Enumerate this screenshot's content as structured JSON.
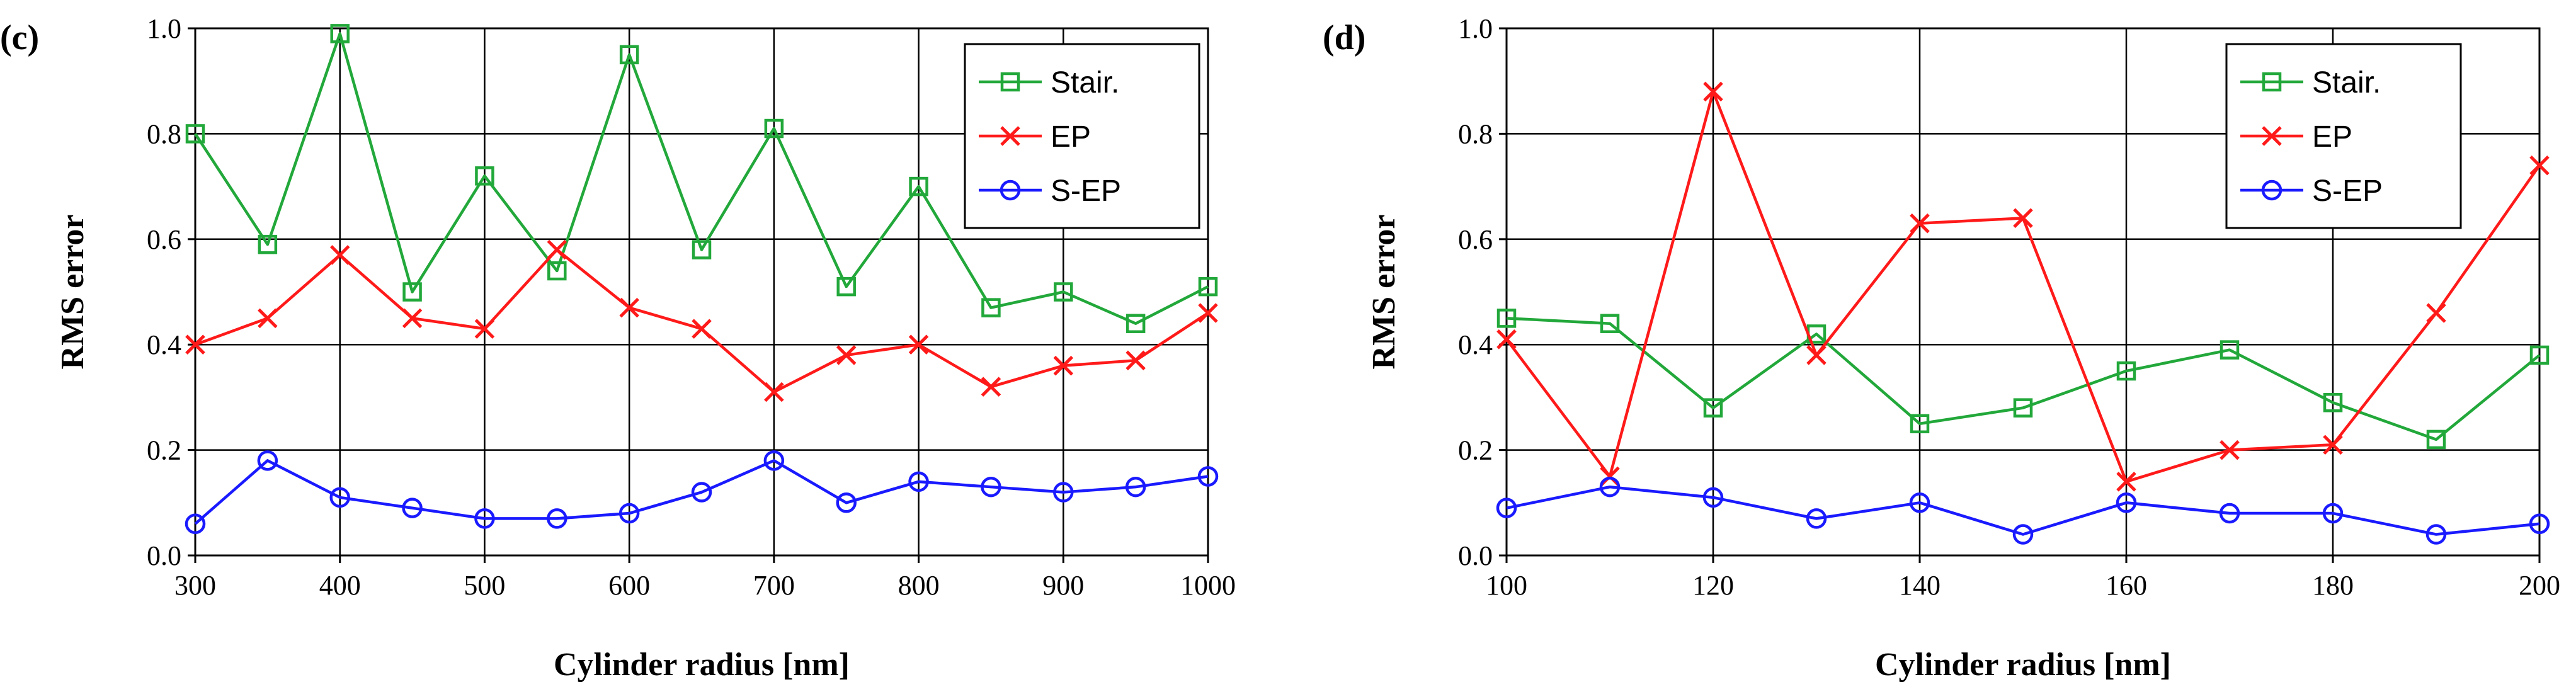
{
  "chart_data": [
    {
      "type": "line",
      "panel_label": "(c)",
      "xlabel": "Cylinder radius [nm]",
      "ylabel": "RMS error",
      "xlim": [
        300,
        1000
      ],
      "ylim": [
        0,
        1.0
      ],
      "x_ticks": [
        "300",
        "400",
        "500",
        "600",
        "700",
        "800",
        "900",
        "1000"
      ],
      "y_ticks": [
        "0.0",
        "0.2",
        "0.4",
        "0.6",
        "0.8",
        "1.0"
      ],
      "grid": true,
      "legend_position": "top-right",
      "x": [
        300,
        350,
        400,
        450,
        500,
        550,
        600,
        650,
        700,
        750,
        800,
        850,
        900,
        950,
        1000
      ],
      "series": [
        {
          "name": "Stair.",
          "color": "#22a83a",
          "marker": "square",
          "values": [
            0.8,
            0.59,
            0.99,
            0.5,
            0.72,
            0.54,
            0.95,
            0.58,
            0.81,
            0.51,
            0.7,
            0.47,
            0.5,
            0.44,
            0.51
          ]
        },
        {
          "name": "EP",
          "color": "#ff1a1a",
          "marker": "x",
          "values": [
            0.4,
            0.45,
            0.57,
            0.45,
            0.43,
            0.58,
            0.47,
            0.43,
            0.31,
            0.38,
            0.4,
            0.32,
            0.36,
            0.37,
            0.46
          ]
        },
        {
          "name": "S-EP",
          "color": "#1a1aff",
          "marker": "circle",
          "values": [
            0.06,
            0.18,
            0.11,
            0.09,
            0.07,
            0.07,
            0.08,
            0.12,
            0.18,
            0.1,
            0.14,
            0.13,
            0.12,
            0.13,
            0.15
          ]
        }
      ]
    },
    {
      "type": "line",
      "panel_label": "(d)",
      "xlabel": "Cylinder radius [nm]",
      "ylabel": "RMS error",
      "xlim": [
        100,
        200
      ],
      "ylim": [
        0,
        1.0
      ],
      "x_ticks": [
        "100",
        "120",
        "140",
        "160",
        "180",
        "200"
      ],
      "y_ticks": [
        "0.0",
        "0.2",
        "0.4",
        "0.6",
        "0.8",
        "1.0"
      ],
      "grid": true,
      "legend_position": "top-right",
      "x": [
        100,
        110,
        120,
        130,
        140,
        150,
        160,
        170,
        180,
        190,
        200
      ],
      "series": [
        {
          "name": "Stair.",
          "color": "#22a83a",
          "marker": "square",
          "values": [
            0.45,
            0.44,
            0.28,
            0.42,
            0.25,
            0.28,
            0.35,
            0.39,
            0.29,
            0.22,
            0.38
          ]
        },
        {
          "name": "EP",
          "color": "#ff1a1a",
          "marker": "x",
          "values": [
            0.41,
            0.15,
            0.88,
            0.38,
            0.63,
            0.64,
            0.14,
            0.2,
            0.21,
            0.46,
            0.74
          ]
        },
        {
          "name": "S-EP",
          "color": "#1a1aff",
          "marker": "circle",
          "values": [
            0.09,
            0.13,
            0.11,
            0.07,
            0.1,
            0.04,
            0.1,
            0.08,
            0.08,
            0.04,
            0.06
          ]
        }
      ]
    }
  ]
}
